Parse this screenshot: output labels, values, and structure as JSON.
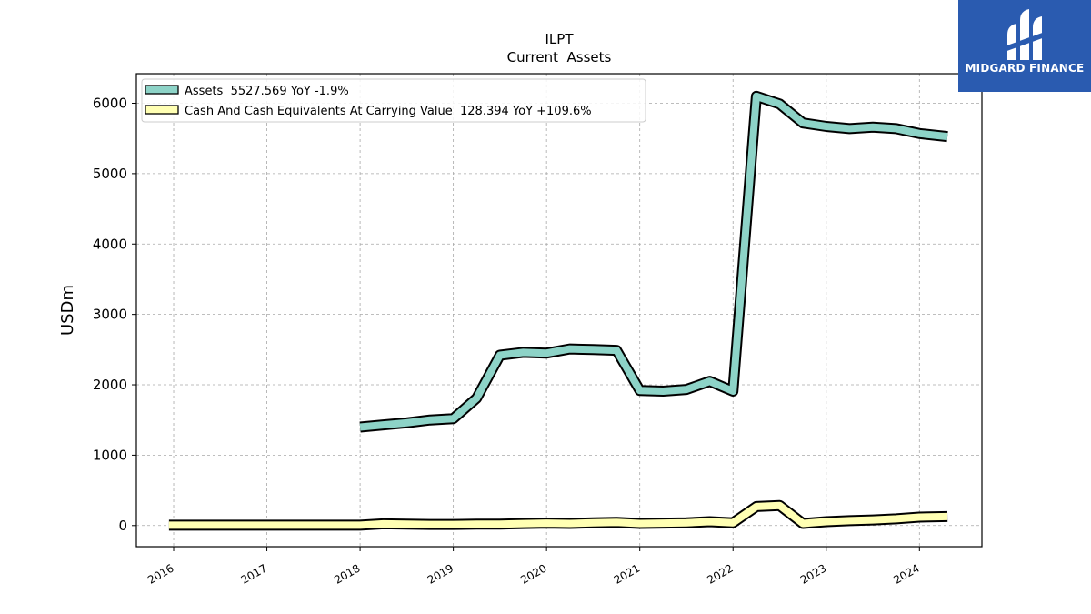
{
  "brand": {
    "name": "MIDGARD FINANCE",
    "bg": "#2a5bb0"
  },
  "chart_data": {
    "type": "line",
    "title": "ILPT",
    "subtitle": "Current  Assets",
    "xlabel": "",
    "ylabel": "USDm",
    "xlim": [
      2015.6,
      2024.67
    ],
    "ylim": [
      -300,
      6420
    ],
    "x_ticks": [
      2016,
      2017,
      2018,
      2019,
      2020,
      2021,
      2022,
      2023,
      2024
    ],
    "y_ticks": [
      0,
      1000,
      2000,
      3000,
      4000,
      5000,
      6000
    ],
    "grid": true,
    "legend_position": "top-left",
    "series": [
      {
        "name": "Assets  5527.569 YoY -1.9%",
        "color": "#8dd3c7",
        "x": [
          2018.0,
          2018.25,
          2018.5,
          2018.75,
          2019.0,
          2019.25,
          2019.5,
          2019.75,
          2020.0,
          2020.25,
          2020.5,
          2020.75,
          2021.0,
          2021.25,
          2021.5,
          2021.75,
          2022.0,
          2022.25,
          2022.5,
          2022.75,
          2023.0,
          2023.25,
          2023.5,
          2023.75,
          2024.0,
          2024.3
        ],
        "y": [
          1400,
          1430,
          1460,
          1500,
          1520,
          1810,
          2420,
          2460,
          2450,
          2510,
          2500,
          2490,
          1920,
          1910,
          1935,
          2050,
          1910,
          6100,
          5990,
          5720,
          5670,
          5640,
          5660,
          5640,
          5570,
          5527.569
        ]
      },
      {
        "name": "Cash And Cash Equivalents At Carrying Value  128.394 YoY +109.6%",
        "color": "#ffffb3",
        "x": [
          2015.95,
          2016.25,
          2016.5,
          2016.75,
          2017.0,
          2017.25,
          2017.5,
          2017.75,
          2018.0,
          2018.25,
          2018.5,
          2018.75,
          2019.0,
          2019.25,
          2019.5,
          2019.75,
          2020.0,
          2020.25,
          2020.5,
          2020.75,
          2021.0,
          2021.25,
          2021.5,
          2021.75,
          2022.0,
          2022.25,
          2022.5,
          2022.75,
          2023.0,
          2023.25,
          2023.5,
          2023.75,
          2024.0,
          2024.3
        ],
        "y": [
          5,
          5,
          5,
          5,
          5,
          5,
          5,
          5,
          5,
          25,
          20,
          15,
          15,
          20,
          20,
          28,
          35,
          30,
          40,
          45,
          30,
          35,
          40,
          55,
          40,
          270,
          285,
          30,
          55,
          70,
          80,
          95,
          120,
          128.394
        ]
      }
    ]
  }
}
